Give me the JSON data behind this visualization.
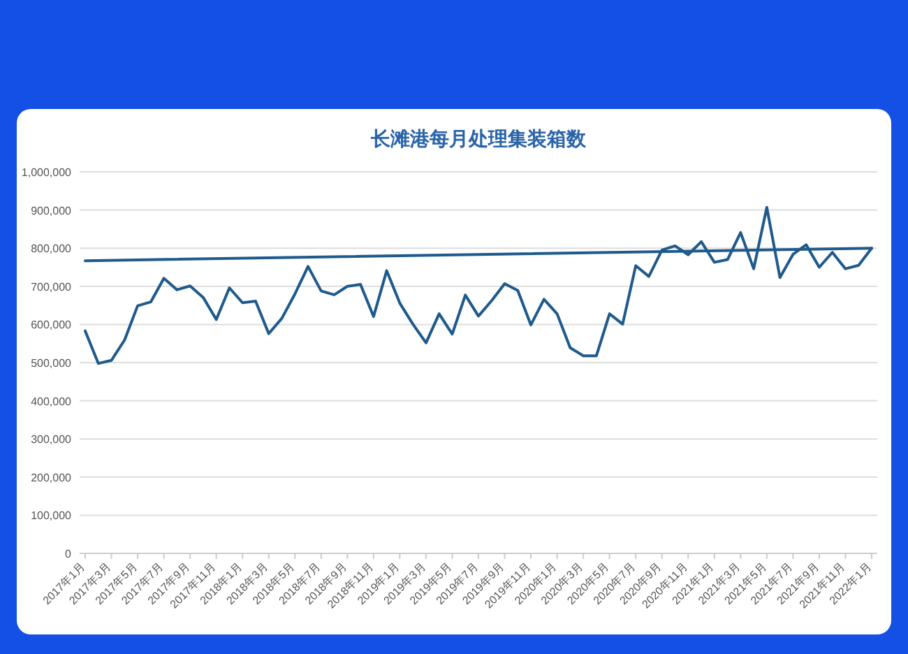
{
  "chart_data": {
    "type": "line",
    "title": "长滩港每月处理集装箱数",
    "categories": [
      "2017年1月",
      null,
      "2017年3月",
      null,
      "2017年5月",
      null,
      "2017年7月",
      null,
      "2017年9月",
      null,
      "2017年11月",
      null,
      "2018年1月",
      null,
      "2018年3月",
      null,
      "2018年5月",
      null,
      "2018年7月",
      null,
      "2018年9月",
      null,
      "2018年11月",
      null,
      "2019年1月",
      null,
      "2019年3月",
      null,
      "2019年5月",
      null,
      "2019年7月",
      null,
      "2019年9月",
      null,
      "2019年11月",
      null,
      "2020年1月",
      null,
      "2020年3月",
      null,
      "2020年5月",
      null,
      "2020年7月",
      null,
      "2020年9月",
      null,
      "2020年11月",
      null,
      "2021年1月",
      null,
      "2021年3月",
      null,
      "2021年5月",
      null,
      "2021年7月",
      null,
      "2021年9月",
      null,
      "2021年11月",
      null,
      "2022年1月"
    ],
    "series": [
      {
        "color": "#1f5a8c",
        "values": [
          583000,
          498000,
          506000,
          559000,
          649000,
          659000,
          721000,
          691000,
          701000,
          671000,
          613000,
          696000,
          657000,
          661000,
          576000,
          616000,
          680000,
          752000,
          688000,
          678000,
          700000,
          705000,
          621000,
          741000,
          656000,
          601000,
          552000,
          628000,
          575000,
          677000,
          622000,
          662000,
          707000,
          689000,
          599000,
          666000,
          628000,
          539000,
          518000,
          518000,
          628000,
          601000,
          754000,
          726000,
          795000,
          806000,
          783000,
          817000,
          763000,
          770000,
          841000,
          746000,
          907000,
          723000,
          784000,
          809000,
          750000,
          789000,
          746000,
          755000,
          800000
        ]
      },
      {
        "color": "#1f5a8c",
        "x": [
          "2017年1月",
          "2022年1月"
        ],
        "values": [
          767000,
          800000
        ]
      }
    ],
    "ylim": [
      0,
      1000000
    ],
    "yticks": [
      {
        "value": 0,
        "label": "0"
      },
      {
        "value": 100000,
        "label": "100,000"
      },
      {
        "value": 200000,
        "label": "200,000"
      },
      {
        "value": 300000,
        "label": "300,000"
      },
      {
        "value": 400000,
        "label": "400,000"
      },
      {
        "value": 500000,
        "label": "500,000"
      },
      {
        "value": 600000,
        "label": "600,000"
      },
      {
        "value": 700000,
        "label": "700,000"
      },
      {
        "value": 800000,
        "label": "800,000"
      },
      {
        "value": 900000,
        "label": "900,000"
      },
      {
        "value": 1000000,
        "label": "1,000,000"
      }
    ],
    "grid": "y"
  }
}
